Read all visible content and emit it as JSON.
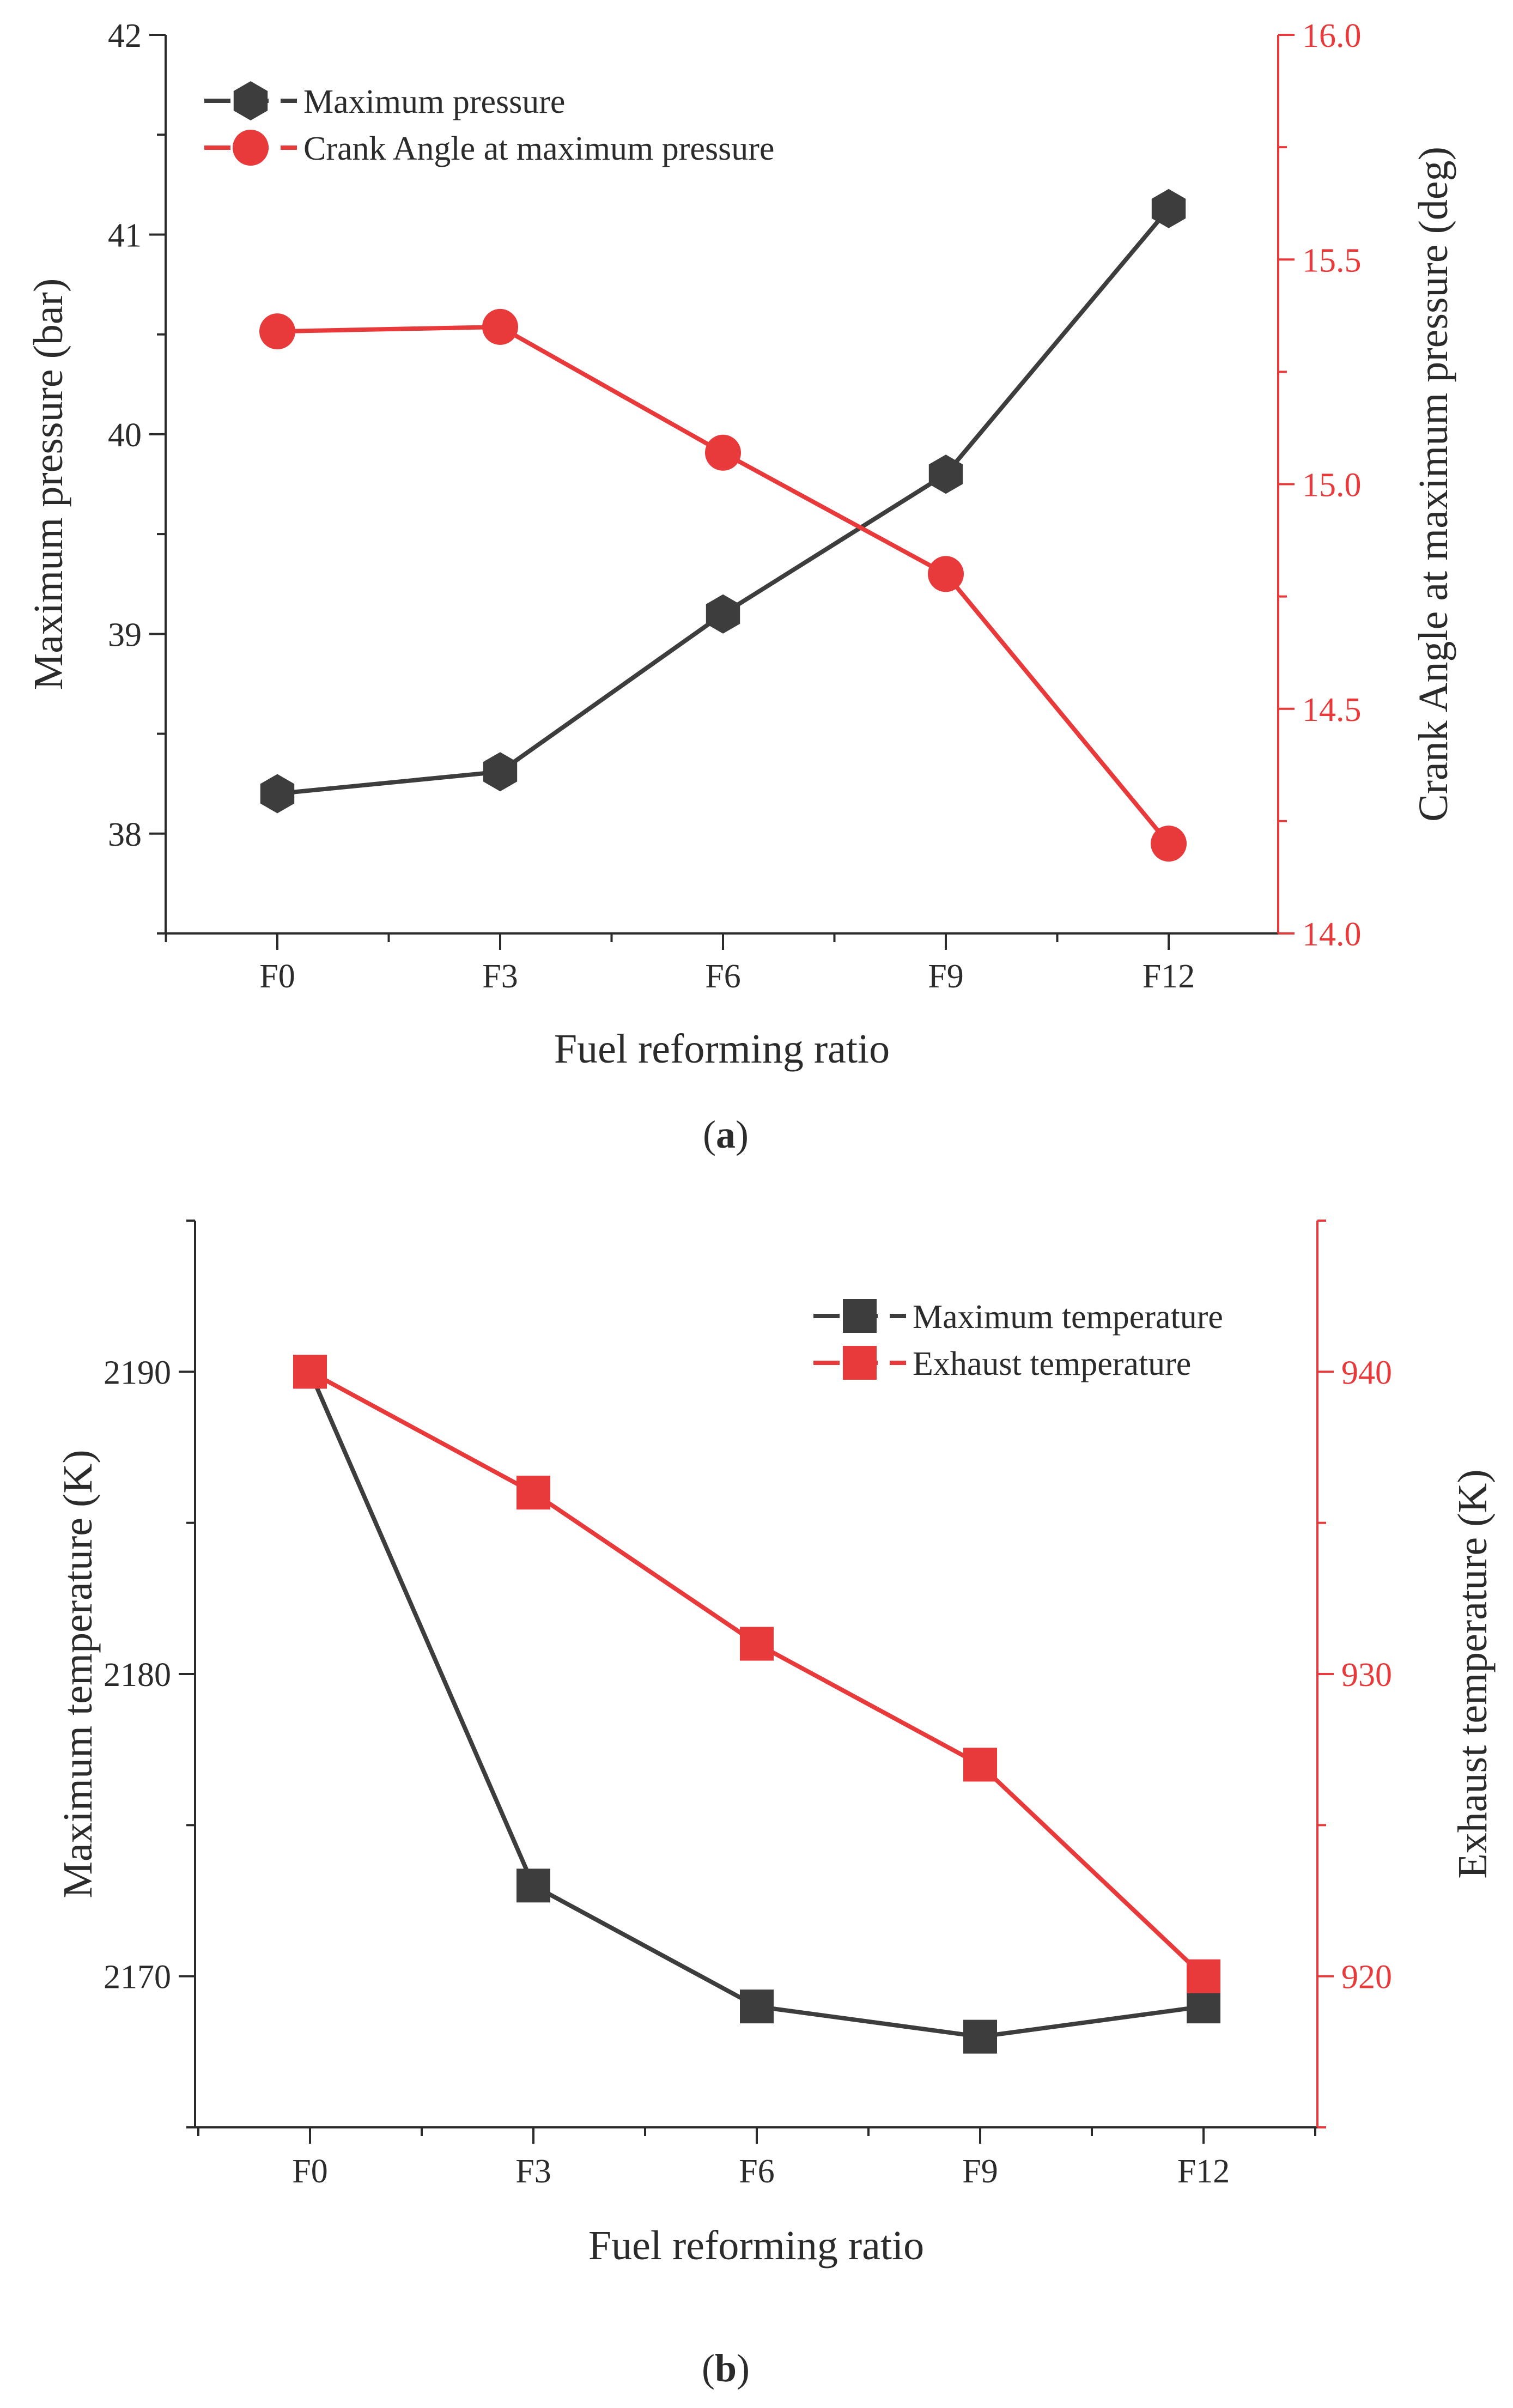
{
  "colors": {
    "series_dark": "#3d3d3d",
    "series_red": "#e8393b",
    "axis_black": "#2b2b2b",
    "axis_red": "#e8393b"
  },
  "chart_data": [
    {
      "panel_label": "a",
      "type": "line",
      "categories": [
        "F0",
        "F3",
        "F6",
        "F9",
        "F12"
      ],
      "xlabel": "Fuel reforming ratio",
      "ylabel": "Maximum pressure (bar)",
      "y2label": "Crank Angle  at maximum pressure (deg)",
      "ylim": [
        37.5,
        42
      ],
      "y2lim": [
        14.0,
        16.0
      ],
      "yticks": [
        38,
        39,
        40,
        41,
        42
      ],
      "y2ticks": [
        "14.0",
        "14.5",
        "15.0",
        "15.5",
        "16.0"
      ],
      "legend_position": "top-left",
      "series": [
        {
          "name": "Maximum pressure",
          "axis": "left",
          "marker": "hexagon",
          "color": "#3d3d3d",
          "values": [
            38.2,
            38.31,
            39.1,
            39.8,
            41.13
          ]
        },
        {
          "name": "Crank Angle  at maximum pressure",
          "axis": "right",
          "marker": "circle",
          "color": "#e8393b",
          "values": [
            15.34,
            15.35,
            15.07,
            14.8,
            14.2
          ]
        }
      ]
    },
    {
      "panel_label": "b",
      "type": "line",
      "categories": [
        "F0",
        "F3",
        "F6",
        "F9",
        "F12"
      ],
      "xlabel": "Fuel reforming ratio",
      "ylabel": "Maximum temperature (K)",
      "y2label": "Exhaust temperature (K)",
      "ylim": [
        2165,
        2195
      ],
      "y2lim": [
        915,
        945
      ],
      "yticks": [
        2170,
        2180,
        2190
      ],
      "y2ticks": [
        920,
        930,
        940
      ],
      "legend_position": "top-right",
      "series": [
        {
          "name": "Maximum temperature",
          "axis": "left",
          "marker": "square",
          "color": "#3d3d3d",
          "values": [
            2190,
            2173,
            2169,
            2168,
            2169
          ]
        },
        {
          "name": "Exhaust temperature",
          "axis": "right",
          "marker": "square",
          "color": "#e8393b",
          "values": [
            940,
            936,
            931,
            927,
            920
          ]
        }
      ]
    }
  ]
}
